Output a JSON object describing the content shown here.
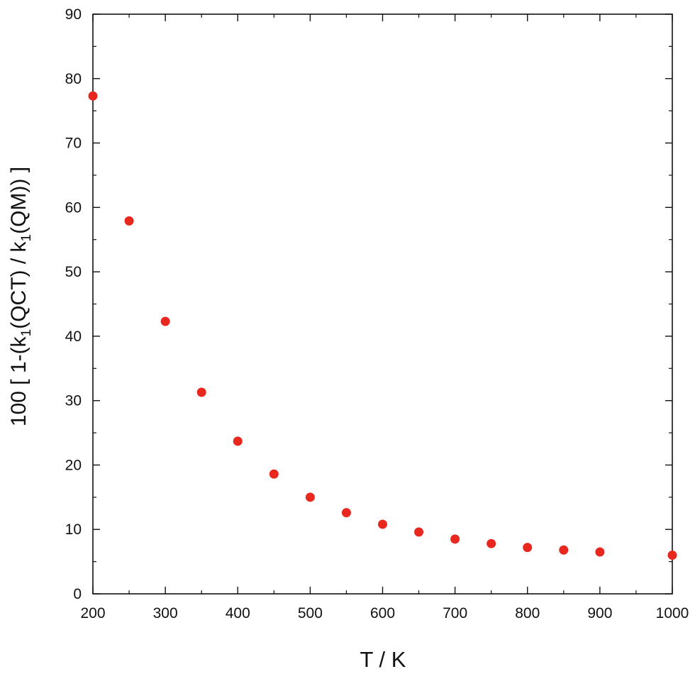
{
  "chart_data": {
    "type": "scatter",
    "title": "",
    "xlabel": "T / K",
    "ylabel_parts": {
      "p1": "100 [ 1-(k",
      "s1": "1",
      "p2": "(QCT) / k",
      "s2": "1",
      "p3": "(QM)) ]"
    },
    "xlim": [
      200,
      1000
    ],
    "ylim": [
      0,
      90
    ],
    "xticks": [
      200,
      300,
      400,
      500,
      600,
      700,
      800,
      900,
      1000
    ],
    "yticks": [
      0,
      10,
      20,
      30,
      40,
      50,
      60,
      70,
      80,
      90
    ],
    "grid": false,
    "marker_color": "#e8281e",
    "series": [
      {
        "x": [
          200,
          250,
          300,
          350,
          400,
          450,
          500,
          550,
          600,
          650,
          700,
          750,
          800,
          850,
          900,
          1000
        ],
        "y": [
          77.3,
          57.9,
          42.3,
          31.3,
          23.7,
          18.6,
          15.0,
          12.6,
          10.8,
          9.6,
          8.5,
          7.8,
          7.2,
          6.8,
          6.5,
          6.0
        ]
      }
    ]
  }
}
